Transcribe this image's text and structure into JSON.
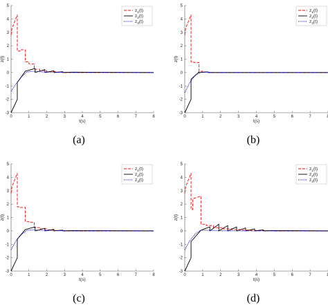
{
  "colors": {
    "z1": "#ff0000",
    "z2": "#000000",
    "z3": "#0000cc"
  },
  "chart_data": [
    {
      "type": "line",
      "panel_label": "(a)",
      "xlabel": "t(s)",
      "ylabel": "z(t)",
      "xlim": [
        0,
        8
      ],
      "ylim": [
        -3,
        5
      ],
      "xticks": [
        "0",
        "1",
        "2",
        "3",
        "4",
        "5",
        "6",
        "7",
        "8"
      ],
      "yticks": [
        "-3",
        "-2",
        "-1",
        "0",
        "1",
        "2",
        "3",
        "4",
        "5"
      ],
      "legend_position": "top-right",
      "series": [
        {
          "name": "z",
          "sub": "1",
          "suffix": "(t)",
          "style": "dashed",
          "x": [
            0,
            0.05,
            0.2,
            0.35,
            0.35,
            0.5,
            0.5,
            0.8,
            0.8,
            1.0,
            1.0,
            1.3,
            1.3,
            1.6,
            1.6,
            2.0,
            2.0,
            2.5,
            2.5,
            3.0,
            3.0,
            8
          ],
          "y": [
            2.8,
            3.3,
            3.8,
            4.3,
            1.6,
            1.6,
            1.7,
            1.7,
            0.8,
            0.8,
            0.65,
            0.65,
            0.25,
            0.25,
            0.15,
            0.15,
            0.07,
            0.07,
            0.03,
            0.03,
            0,
            0
          ]
        },
        {
          "name": "z",
          "sub": "2",
          "suffix": "(t)",
          "style": "solid",
          "x": [
            0,
            0.35,
            0.35,
            0.8,
            1.35,
            1.35,
            1.9,
            1.9,
            2.4,
            2.4,
            2.9,
            2.9,
            3.4,
            8
          ],
          "y": [
            -3.0,
            -2.0,
            -0.75,
            0.1,
            0.3,
            0,
            0.22,
            0,
            0.13,
            0,
            0.06,
            0,
            0.03,
            0
          ]
        },
        {
          "name": "z",
          "sub": "3",
          "suffix": "(t)",
          "style": "dotted",
          "x": [
            0,
            0.3,
            0.6,
            0.9,
            1.3,
            1.8,
            2.5,
            3.5,
            8
          ],
          "y": [
            -1.4,
            -0.8,
            -0.3,
            0.05,
            0.1,
            0.04,
            0.02,
            0,
            0
          ]
        }
      ]
    },
    {
      "type": "line",
      "panel_label": "(b)",
      "xlabel": "t(s)",
      "ylabel": "z(t)",
      "xlim": [
        0,
        8
      ],
      "ylim": [
        -3,
        5
      ],
      "xticks": [
        "0",
        "1",
        "2",
        "3",
        "4",
        "5",
        "6",
        "7",
        "8"
      ],
      "yticks": [
        "-3",
        "-2",
        "-1",
        "0",
        "1",
        "2",
        "3",
        "4",
        "5"
      ],
      "legend_position": "top-right",
      "series": [
        {
          "name": "z",
          "sub": "1",
          "suffix": "(t)",
          "style": "dashed",
          "x": [
            0,
            0.05,
            0.2,
            0.35,
            0.35,
            0.5,
            0.5,
            0.8,
            0.8,
            1.0,
            1.0,
            1.3,
            1.3,
            8
          ],
          "y": [
            2.8,
            3.3,
            3.8,
            4.3,
            0.8,
            0.8,
            0.75,
            0.75,
            0.1,
            0.1,
            0.05,
            0.05,
            0,
            0
          ]
        },
        {
          "name": "z",
          "sub": "2",
          "suffix": "(t)",
          "style": "solid",
          "x": [
            0,
            0.35,
            0.35,
            0.8,
            0.8,
            1.3,
            1.3,
            8
          ],
          "y": [
            -3.0,
            -2.0,
            -0.5,
            0.05,
            0,
            0.05,
            0,
            0
          ]
        },
        {
          "name": "z",
          "sub": "3",
          "suffix": "(t)",
          "style": "dotted",
          "x": [
            0,
            0.3,
            0.6,
            0.9,
            1.2,
            1.6,
            8
          ],
          "y": [
            -1.5,
            -0.7,
            -0.2,
            0.02,
            0.03,
            0,
            0
          ]
        }
      ]
    },
    {
      "type": "line",
      "panel_label": "(c)",
      "xlabel": "t(s)",
      "ylabel": "z(t)",
      "xlim": [
        0,
        8
      ],
      "ylim": [
        -3,
        5
      ],
      "xticks": [
        "0",
        "1",
        "2",
        "3",
        "4",
        "5",
        "6",
        "7",
        "8"
      ],
      "yticks": [
        "-3",
        "-2",
        "-1",
        "0",
        "1",
        "2",
        "3",
        "4",
        "5"
      ],
      "legend_position": "top-right",
      "series": [
        {
          "name": "z",
          "sub": "1",
          "suffix": "(t)",
          "style": "dashed",
          "x": [
            0,
            0.05,
            0.2,
            0.35,
            0.35,
            0.5,
            0.5,
            0.8,
            0.8,
            1.0,
            1.0,
            1.3,
            1.3,
            1.6,
            1.6,
            2.0,
            2.0,
            2.5,
            2.5,
            3.0,
            3.0,
            8
          ],
          "y": [
            2.8,
            3.3,
            3.8,
            4.3,
            1.8,
            1.8,
            1.75,
            1.75,
            0.7,
            0.7,
            0.65,
            0.65,
            0.25,
            0.25,
            0.15,
            0.15,
            0.08,
            0.08,
            0.03,
            0.03,
            0,
            0
          ]
        },
        {
          "name": "z",
          "sub": "2",
          "suffix": "(t)",
          "style": "solid",
          "x": [
            0,
            0.35,
            0.35,
            0.8,
            1.35,
            1.35,
            1.9,
            1.9,
            2.4,
            2.4,
            2.9,
            2.9,
            3.4,
            8
          ],
          "y": [
            -3.0,
            -2.0,
            -0.6,
            0.1,
            0.3,
            0,
            0.2,
            0,
            0.12,
            0,
            0.06,
            0,
            0.03,
            0
          ]
        },
        {
          "name": "z",
          "sub": "3",
          "suffix": "(t)",
          "style": "dotted",
          "x": [
            0,
            0.3,
            0.6,
            0.9,
            1.3,
            1.8,
            2.5,
            3.5,
            8
          ],
          "y": [
            -1.4,
            -0.7,
            -0.25,
            0.05,
            0.08,
            0.04,
            0.02,
            0,
            0
          ]
        }
      ]
    },
    {
      "type": "line",
      "panel_label": "(d)",
      "xlabel": "t(s)",
      "ylabel": "z(t)",
      "xlim": [
        0,
        8
      ],
      "ylim": [
        -3,
        5
      ],
      "xticks": [
        "0",
        "1",
        "2",
        "3",
        "4",
        "5",
        "6",
        "7",
        "8"
      ],
      "yticks": [
        "-3",
        "-2",
        "-1",
        "0",
        "1",
        "2",
        "3",
        "4",
        "5"
      ],
      "legend_position": "top-right",
      "series": [
        {
          "name": "z",
          "sub": "1",
          "suffix": "(t)",
          "style": "dashed",
          "x": [
            0,
            0.05,
            0.2,
            0.35,
            0.35,
            0.45,
            0.45,
            0.9,
            0.9,
            1.2,
            1.2,
            1.6,
            1.6,
            2.1,
            2.1,
            2.6,
            2.6,
            3.1,
            3.1,
            3.6,
            3.6,
            4.1,
            4.1,
            4.6,
            4.6,
            5.0,
            5.0,
            8
          ],
          "y": [
            2.8,
            3.3,
            3.8,
            4.3,
            1.6,
            1.6,
            2.4,
            2.6,
            0.5,
            0.5,
            0.4,
            0.4,
            0.25,
            0.25,
            0.15,
            0.15,
            0.1,
            0.1,
            0.06,
            0.06,
            0.04,
            0.04,
            0.02,
            0.02,
            0.01,
            0.01,
            0,
            0
          ]
        },
        {
          "name": "z",
          "sub": "2",
          "suffix": "(t)",
          "style": "solid",
          "x": [
            0,
            0.35,
            0.35,
            0.9,
            1.4,
            1.4,
            1.9,
            1.9,
            2.4,
            2.4,
            2.9,
            2.9,
            3.4,
            3.4,
            3.9,
            3.9,
            4.4,
            4.4,
            4.9,
            8
          ],
          "y": [
            -3.0,
            -2.0,
            -0.8,
            0.05,
            0.3,
            0,
            0.5,
            0,
            0.4,
            0,
            0.3,
            0,
            0.22,
            0,
            0.15,
            0,
            0.08,
            0,
            0.03,
            0
          ]
        },
        {
          "name": "z",
          "sub": "3",
          "suffix": "(t)",
          "style": "dotted",
          "x": [
            0,
            0.3,
            0.6,
            0.9,
            1.3,
            1.8,
            2.5,
            3.5,
            8
          ],
          "y": [
            -1.4,
            -0.7,
            -0.2,
            0.05,
            0.05,
            0.02,
            0.01,
            0,
            0
          ]
        }
      ]
    }
  ]
}
